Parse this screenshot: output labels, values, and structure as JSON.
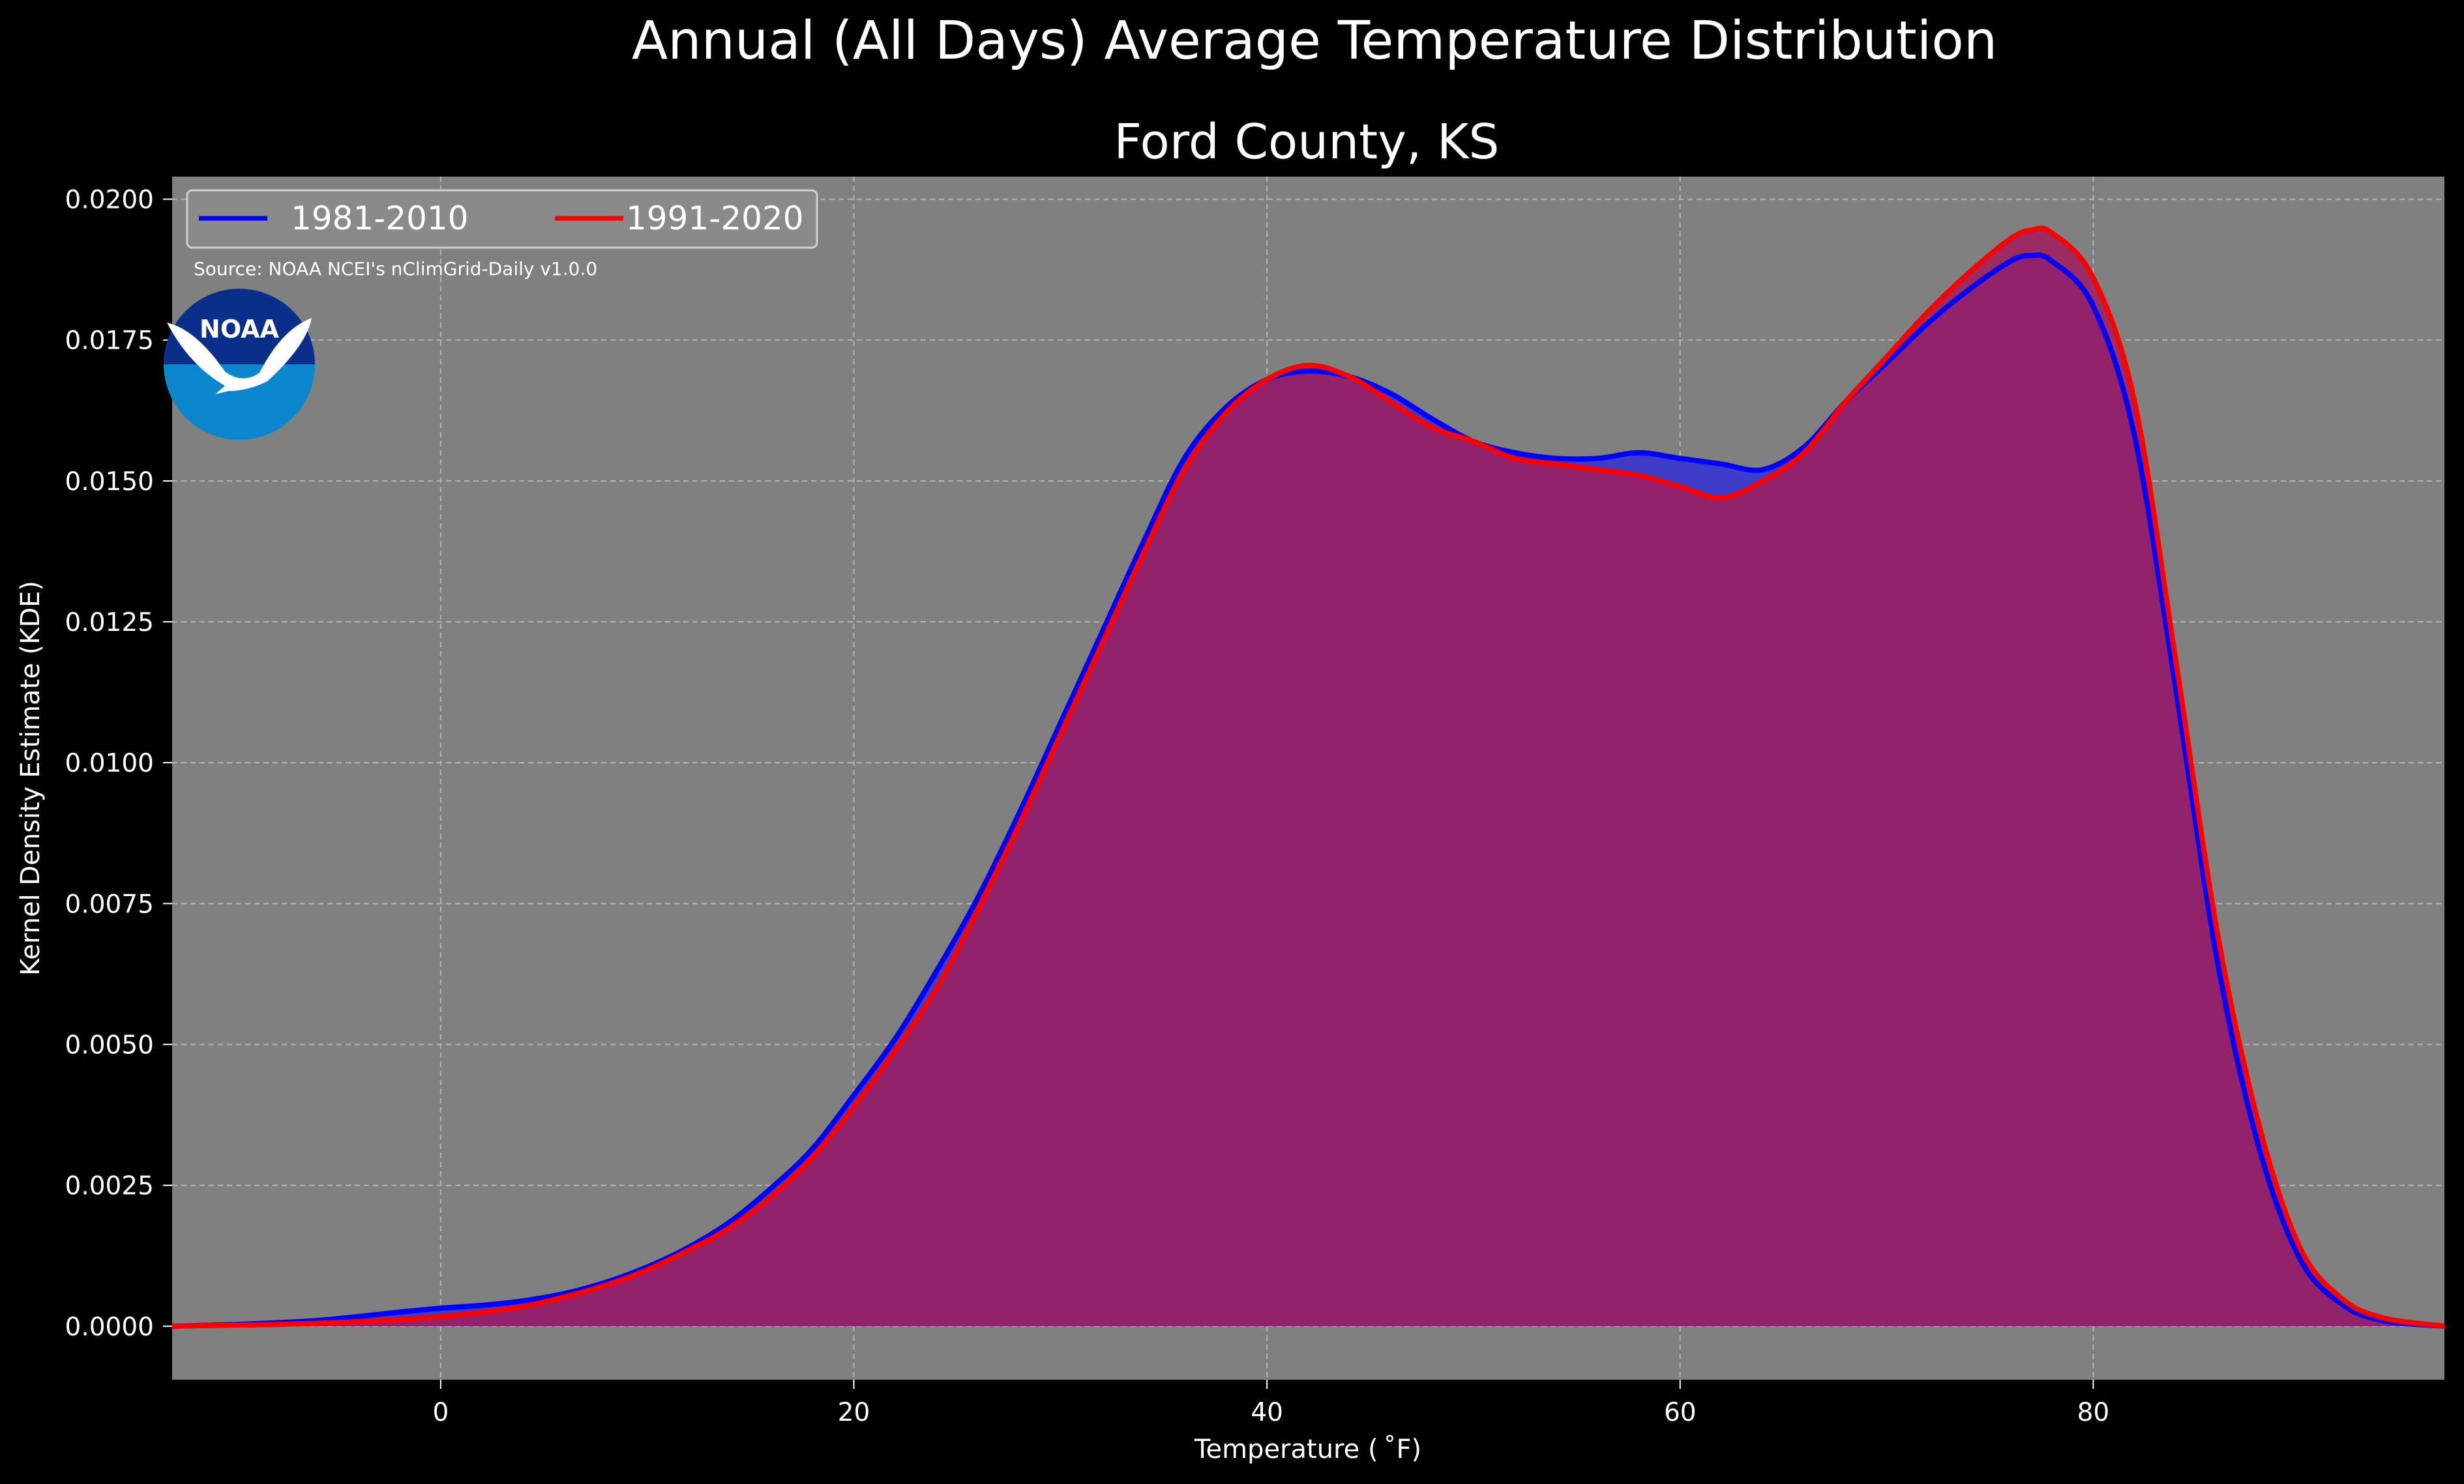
{
  "chart_data": {
    "type": "area",
    "suptitle": "Annual (All Days) Average Temperature Distribution",
    "title": "Ford County, KS",
    "xlabel": "Temperature ($^\\circ$F)",
    "xlabel_display": "Temperature ( ˚F)",
    "ylabel": "Kernel Density Estimate (KDE)",
    "xlim": [
      -13,
      97
    ],
    "ylim": [
      -0.00095,
      0.0204
    ],
    "xticks": [
      0,
      20,
      40,
      60,
      80
    ],
    "xtick_labels": [
      "0",
      "20",
      "40",
      "60",
      "80"
    ],
    "yticks": [
      0,
      0.0025,
      0.005,
      0.0075,
      0.01,
      0.0125,
      0.015,
      0.0175,
      0.02
    ],
    "ytick_labels": [
      "0.0000",
      "0.0025",
      "0.0050",
      "0.0075",
      "0.0100",
      "0.0125",
      "0.0150",
      "0.0175",
      "0.0200"
    ],
    "grid": true,
    "legend_position": "top-left",
    "annotation": "Source: NOAA NCEI's nClimGrid-Daily v1.0.0",
    "logo_text": "NOAA",
    "x": [
      -13,
      -10,
      -8,
      -6,
      -4,
      -2,
      0,
      2,
      4,
      6,
      8,
      10,
      12,
      14,
      16,
      18,
      20,
      22,
      24,
      26,
      28,
      30,
      32,
      34,
      36,
      38,
      40,
      42,
      44,
      46,
      48,
      50,
      52,
      54,
      56,
      58,
      60,
      62,
      64,
      66,
      68,
      70,
      72,
      74,
      76,
      77,
      78,
      80,
      82,
      84,
      86,
      88,
      90,
      92,
      94,
      97
    ],
    "series": [
      {
        "name": "1981-2010",
        "color": "#0000ff",
        "fill": "#3d3dc9",
        "values": [
          0.0,
          3e-05,
          6e-05,
          0.0001,
          0.00017,
          0.00025,
          0.00032,
          0.00037,
          0.00045,
          0.00058,
          0.00078,
          0.00105,
          0.0014,
          0.00185,
          0.00245,
          0.00315,
          0.0041,
          0.0051,
          0.0063,
          0.0076,
          0.0091,
          0.0107,
          0.0123,
          0.0139,
          0.0154,
          0.0163,
          0.0168,
          0.01695,
          0.01685,
          0.01655,
          0.0161,
          0.0157,
          0.0155,
          0.0154,
          0.0154,
          0.0155,
          0.0154,
          0.0153,
          0.0152,
          0.0156,
          0.0164,
          0.0171,
          0.0178,
          0.0184,
          0.0189,
          0.019,
          0.0189,
          0.0181,
          0.0158,
          0.0113,
          0.0065,
          0.0032,
          0.0012,
          0.0004,
          0.0001,
          0.0
        ]
      },
      {
        "name": "1991-2020",
        "color": "#ff0000",
        "fill": "#9e1f5e",
        "values": [
          0.0,
          2e-05,
          3e-05,
          5e-05,
          8e-05,
          0.00012,
          0.00017,
          0.00025,
          0.00035,
          0.00052,
          0.00073,
          0.001,
          0.00135,
          0.00175,
          0.0023,
          0.003,
          0.0039,
          0.0049,
          0.006,
          0.0074,
          0.0089,
          0.0105,
          0.0121,
          0.0137,
          0.0152,
          0.0162,
          0.0168,
          0.01705,
          0.01685,
          0.0164,
          0.01595,
          0.0157,
          0.0154,
          0.0153,
          0.0152,
          0.0151,
          0.0149,
          0.0147,
          0.015,
          0.0155,
          0.0164,
          0.0172,
          0.018,
          0.0187,
          0.0193,
          0.01945,
          0.0194,
          0.0186,
          0.0164,
          0.0118,
          0.007,
          0.0036,
          0.0014,
          0.0005,
          0.00015,
          0.0
        ]
      }
    ]
  }
}
